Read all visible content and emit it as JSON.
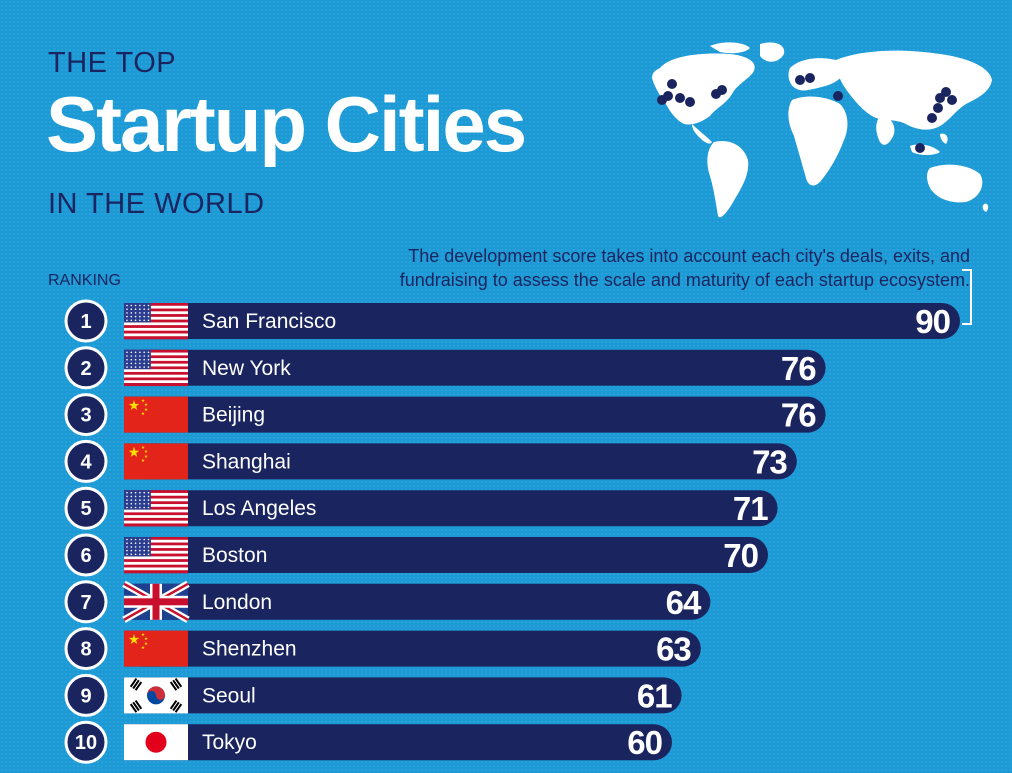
{
  "header": {
    "top": "THE TOP",
    "main": "Startup Cities",
    "bottom": "IN THE WORLD"
  },
  "description": "The development score takes into account each city's deals, exits, and fundraising to assess the scale and maturity of each startup ecosystem.",
  "ranking_label": "RANKING",
  "colors": {
    "background": "#1c9ad6",
    "bar": "#1a2560",
    "text_dark": "#1a2560",
    "white": "#ffffff"
  },
  "chart_data": {
    "type": "bar",
    "orientation": "horizontal",
    "categories": [
      "San Francisco",
      "New York",
      "Beijing",
      "Shanghai",
      "Los Angeles",
      "Boston",
      "London",
      "Shenzhen",
      "Seoul",
      "Tokyo"
    ],
    "ranks": [
      "1",
      "2",
      "3",
      "4",
      "5",
      "6",
      "7",
      "8",
      "9",
      "10"
    ],
    "values": [
      90,
      76,
      76,
      73,
      71,
      70,
      64,
      63,
      61,
      60
    ],
    "flags": [
      "us-flag-icon",
      "us-flag-icon",
      "cn-flag-icon",
      "cn-flag-icon",
      "us-flag-icon",
      "us-flag-icon",
      "uk-flag-icon",
      "cn-flag-icon",
      "kr-flag-icon",
      "jp-flag-icon"
    ],
    "xlim": [
      0,
      90
    ]
  }
}
